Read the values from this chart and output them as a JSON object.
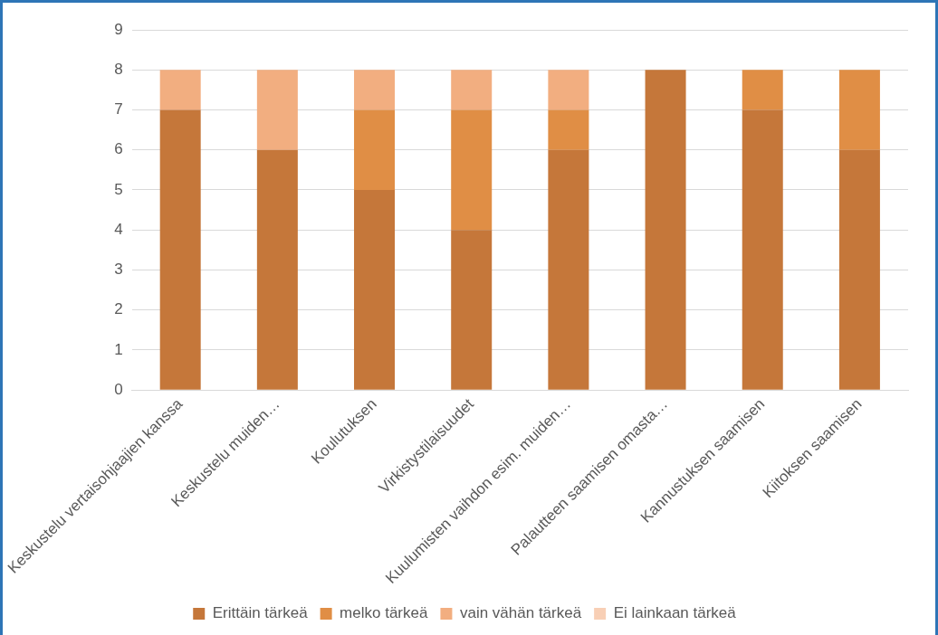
{
  "chart_data": {
    "type": "bar",
    "stacked": true,
    "categories": [
      "Keskustelu vertaisohjaajien kanssa",
      "Keskustelu muiden…",
      "Koulutuksen",
      "Virkistystilaisuudet",
      "Kuulumisten vaihdon esim. muiden…",
      "Palautteen saamisen omasta…",
      "Kannustuksen saamisen",
      "Kiitoksen saamisen"
    ],
    "series": [
      {
        "name": "Erittäin tärkeä",
        "color": "#c5773a",
        "values": [
          7,
          6,
          5,
          4,
          6,
          8,
          7,
          6
        ]
      },
      {
        "name": "melko tärkeä",
        "color": "#e08e45",
        "values": [
          0,
          0,
          2,
          3,
          1,
          0,
          1,
          2
        ]
      },
      {
        "name": "vain vähän tärkeä",
        "color": "#f2ae80",
        "values": [
          1,
          2,
          1,
          1,
          1,
          0,
          0,
          0
        ]
      },
      {
        "name": "Ei lainkaan tärkeä",
        "color": "#f8cfb5",
        "values": [
          0,
          0,
          0,
          0,
          0,
          0,
          0,
          0
        ]
      }
    ],
    "ylim": [
      0,
      9
    ],
    "yticks": [
      0,
      1,
      2,
      3,
      4,
      5,
      6,
      7,
      8,
      9
    ],
    "grid": "y",
    "legend": "bottom"
  }
}
